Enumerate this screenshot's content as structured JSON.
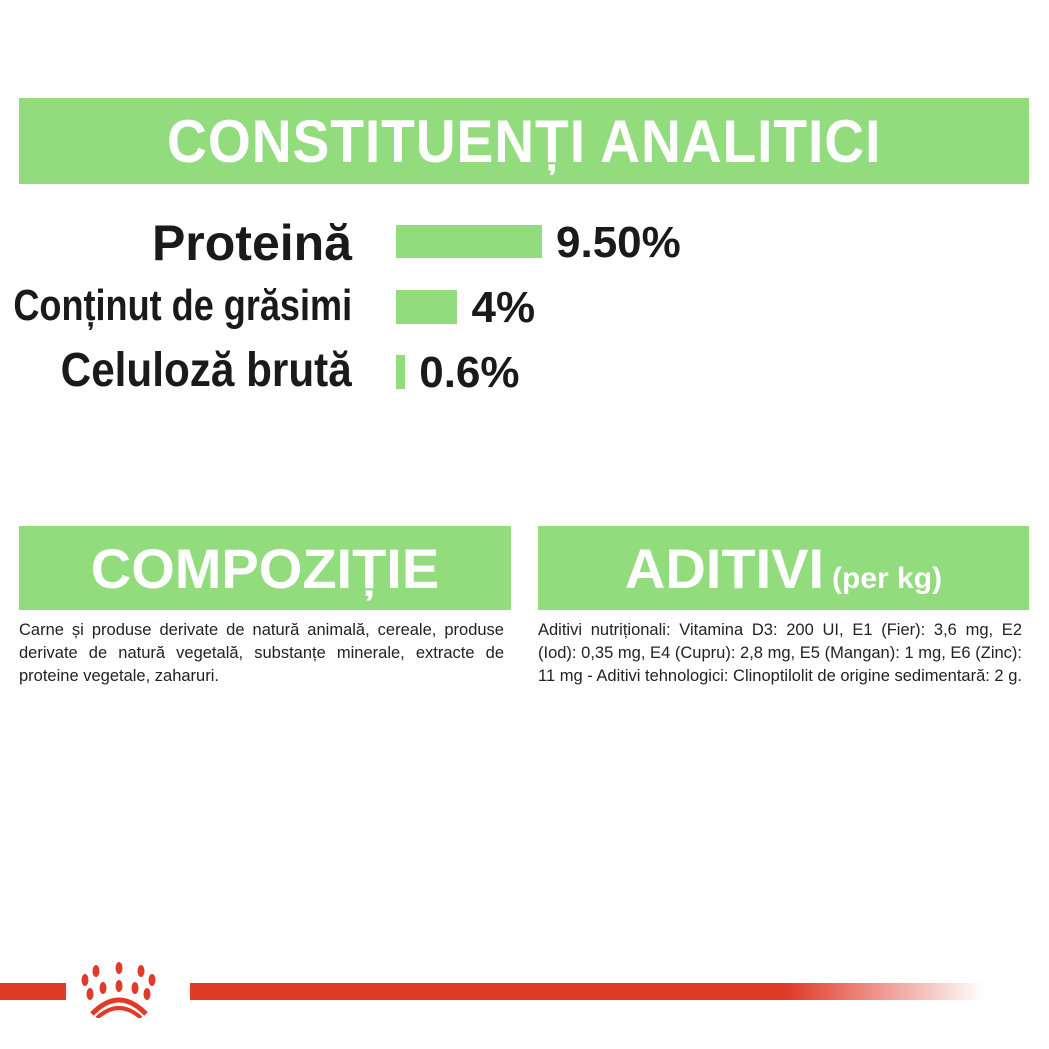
{
  "analytic": {
    "title": "CONSTITUENȚI ANALITICI",
    "rows": [
      {
        "label": "Proteină",
        "value": "9.50%",
        "percent": 9.5
      },
      {
        "label": "Conținut de grăsimi",
        "value": "4%",
        "percent": 4
      },
      {
        "label": "Celuloză brută",
        "value": "0.6%",
        "percent": 0.6
      }
    ]
  },
  "composition": {
    "title": "COMPOZIȚIE",
    "text": "Carne și produse derivate de natură animală, cereale, produse derivate de natură vegetală, substanțe minerale, extracte de proteine vegetale, zaharuri."
  },
  "additives": {
    "title": "ADITIVI",
    "title_suffix": "(per kg)",
    "text": "Aditivi nutriționali: Vitamina D3: 200 UI, E1 (Fier): 3,6 mg, E2 (Iod): 0,35 mg, E4 (Cupru): 2,8 mg, E5 (Mangan): 1 mg, E6 (Zinc): 11 mg - Aditivi tehnologici: Clinoptilolit de origine sedimentară: 2 g."
  },
  "colors": {
    "accent": "#92dc7e",
    "brand_red": "#e03a28"
  },
  "logo": {
    "icon": "royal-canin-crown-icon"
  }
}
